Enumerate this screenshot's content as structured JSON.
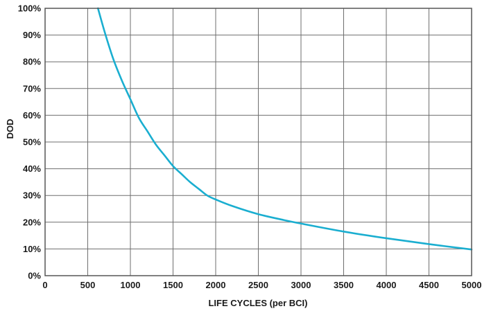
{
  "chart_data": {
    "type": "line",
    "title": "",
    "xlabel": "LIFE CYCLES (per BCI)",
    "ylabel": "DOD",
    "xlim": [
      0,
      5000
    ],
    "ylim": [
      0,
      100
    ],
    "x_ticks": [
      0,
      500,
      1000,
      1500,
      2000,
      2500,
      3000,
      3500,
      4000,
      4500,
      5000
    ],
    "x_tick_labels": [
      "0",
      "500",
      "1000",
      "1500",
      "2000",
      "2500",
      "3000",
      "3500",
      "4000",
      "4500",
      "5000"
    ],
    "y_ticks": [
      0,
      10,
      20,
      30,
      40,
      50,
      60,
      70,
      80,
      90,
      100
    ],
    "y_tick_labels": [
      "0%",
      "10%",
      "20%",
      "30%",
      "40%",
      "50%",
      "60%",
      "70%",
      "80%",
      "90%",
      "100%"
    ],
    "grid": true,
    "legend": "none",
    "series": [
      {
        "color": "#1aaed0",
        "x": [
          620,
          700,
          800,
          900,
          1000,
          1100,
          1200,
          1300,
          1400,
          1500,
          1600,
          1700,
          1800,
          1900,
          2000,
          2200,
          2500,
          2800,
          3000,
          3500,
          4000,
          4500,
          5000
        ],
        "y": [
          100,
          91,
          81,
          73,
          66,
          59,
          54,
          49,
          45,
          41,
          38,
          35,
          32.5,
          30,
          28.5,
          26,
          23,
          20.8,
          19.5,
          16.5,
          14,
          11.8,
          9.8
        ]
      }
    ]
  }
}
